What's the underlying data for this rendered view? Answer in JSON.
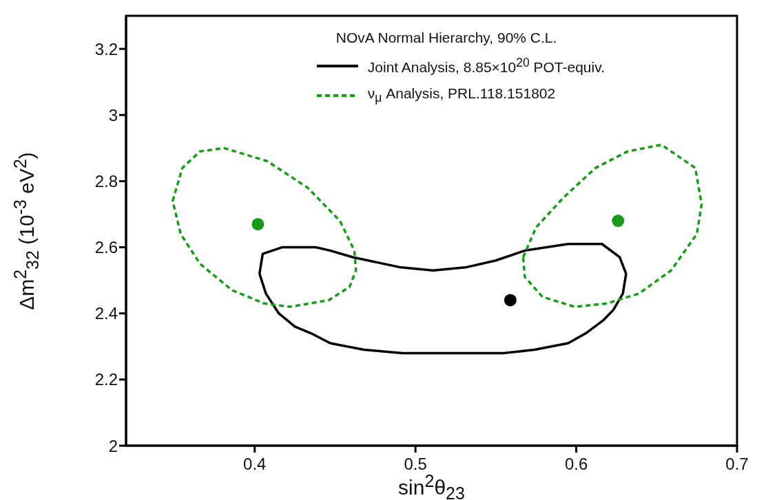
{
  "chart_data": {
    "type": "line",
    "legend_title": "NOvA Normal Hierarchy, 90% C.L.",
    "xlabel": "sin$^{2}$θ$_{23}$",
    "ylabel": "Δm$^{2}$$_{32}$ (10$^{-3}$ eV$^{2}$)",
    "xlim": [
      0.32,
      0.7
    ],
    "xticks": [
      0.4,
      0.5,
      0.6,
      0.7
    ],
    "ylim": [
      2,
      3.3
    ],
    "yticks": [
      2,
      2.2,
      2.4,
      2.6,
      2.8,
      3,
      3.2
    ],
    "legend": "top right",
    "series": [
      {
        "name": "Joint Analysis, 8.85×10$^{20}$ POT-equiv.",
        "line_style": "solid",
        "color": "#000000",
        "x": [
          0.403,
          0.405,
          0.417,
          0.427,
          0.438,
          0.447,
          0.461,
          0.49,
          0.511,
          0.532,
          0.55,
          0.568,
          0.595,
          0.616,
          0.627,
          0.631
        ],
        "values": [
          2.52,
          2.58,
          2.6,
          2.6,
          2.6,
          2.59,
          2.57,
          2.54,
          2.53,
          2.54,
          2.56,
          2.59,
          2.61,
          2.61,
          2.57,
          2.52
        ]
      },
      {
        "line_style": "solid",
        "color": "#000000",
        "x": [
          0.403,
          0.407,
          0.415,
          0.425,
          0.435,
          0.447,
          0.468,
          0.492,
          0.52,
          0.555,
          0.574,
          0.595,
          0.606,
          0.617,
          0.623,
          0.629,
          0.631
        ],
        "values": [
          2.52,
          2.46,
          2.4,
          2.36,
          2.34,
          2.31,
          2.29,
          2.28,
          2.28,
          2.28,
          2.29,
          2.31,
          2.34,
          2.38,
          2.41,
          2.46,
          2.52
        ]
      },
      {
        "name": "ν$_{μ}$ Analysis, PRL.118.151802",
        "type": "scatter",
        "marker": "circle",
        "line_style": "dashed",
        "color": "#1a9a1a",
        "x": [
          0.402,
          0.626
        ],
        "values": [
          2.67,
          2.68
        ]
      },
      {
        "type": "scatter",
        "marker": "circle",
        "color": "#000000",
        "x": [
          0.559
        ],
        "values": [
          2.44
        ]
      }
    ]
  }
}
